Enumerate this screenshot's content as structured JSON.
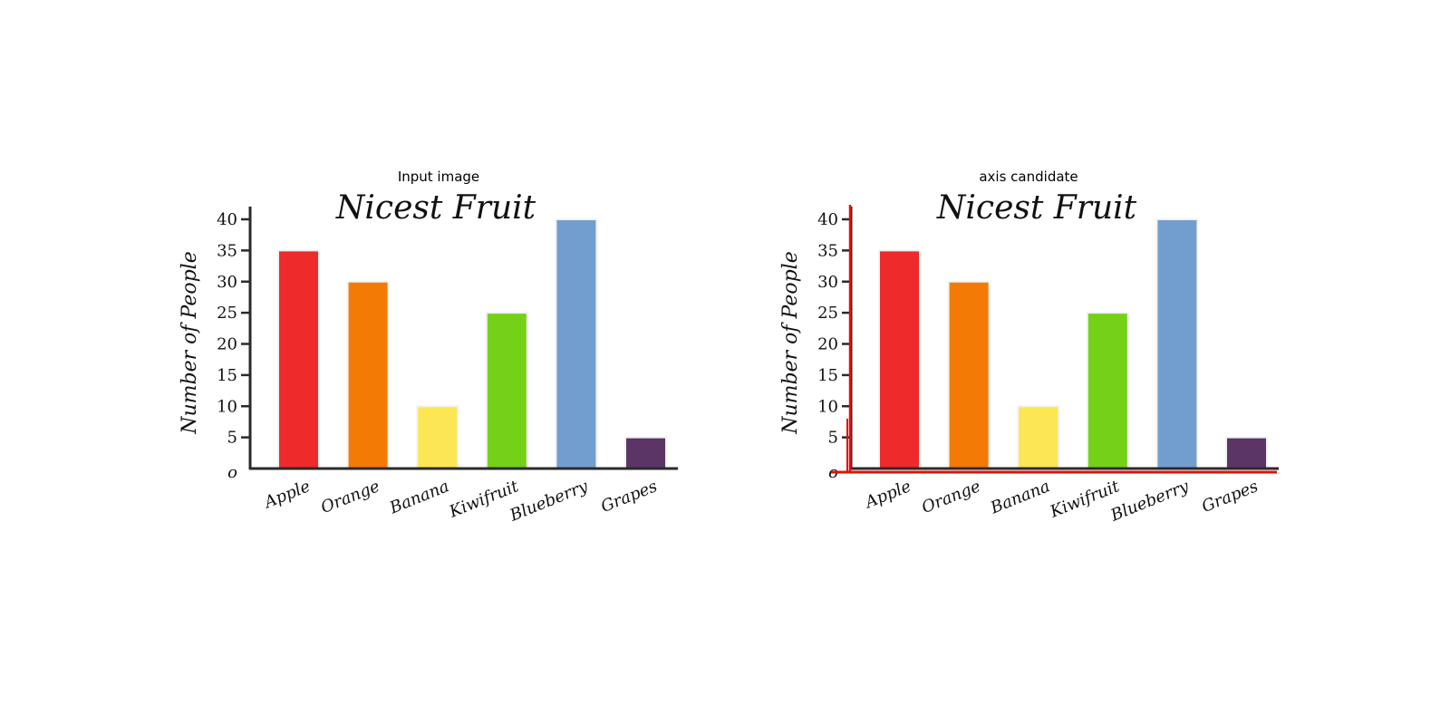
{
  "panels": {
    "left_title": "Input image",
    "right_title": "axis candidate"
  },
  "colors": {
    "axis": "#2a2a2a",
    "candidate_axis": "#e01010",
    "bar_outline": "#f2f2f2"
  },
  "chart_data": [
    {
      "type": "bar",
      "title": "Nicest Fruit",
      "xlabel": "",
      "ylabel": "Number of People",
      "categories": [
        "Apple",
        "Orange",
        "Banana",
        "Kiwifruit",
        "Blueberry",
        "Grapes"
      ],
      "values": [
        35,
        30,
        10,
        25,
        40,
        5
      ],
      "bar_colors": [
        "#ee2a2a",
        "#f47a06",
        "#fbe653",
        "#74d118",
        "#729ecf",
        "#5a3566"
      ],
      "ylim": [
        0,
        40
      ],
      "yticks": [
        0,
        5,
        10,
        15,
        20,
        25,
        30,
        35,
        40
      ],
      "ytick_labels": [
        "o",
        "5",
        "10",
        "15",
        "20",
        "25",
        "30",
        "35",
        "40"
      ],
      "grid": false,
      "legend": "none"
    }
  ]
}
